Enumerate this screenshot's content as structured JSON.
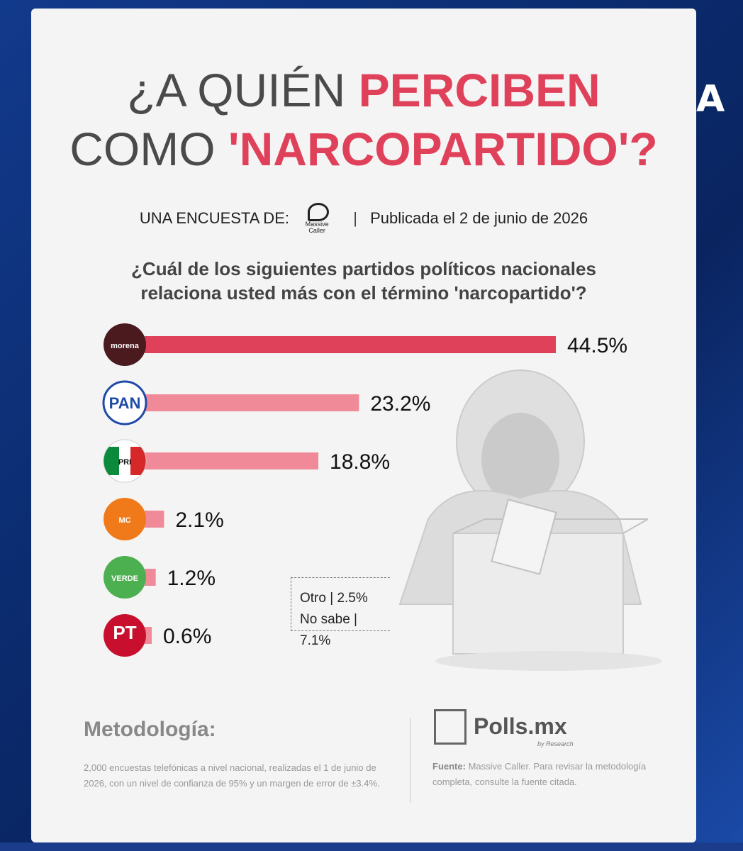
{
  "side_logo": "A",
  "title": {
    "line1_a": "¿A QUIÉN ",
    "line1_b": "PERCIBEN",
    "line2_a": "COMO ",
    "line2_b": "'NARCOPARTIDO'?"
  },
  "subline": {
    "survey_by": "UNA ENCUESTA DE:",
    "pollster_logo_text": "Massive Caller",
    "separator": "|",
    "published": "Publicada el 2 de junio de 2026"
  },
  "question": {
    "line1": "¿Cuál de los siguientes partidos políticos nacionales",
    "line2": "relaciona usted más con el término 'narcopartido'?"
  },
  "chart_data": {
    "type": "bar",
    "orientation": "horizontal",
    "categories": [
      "morena",
      "PAN",
      "PRI",
      "MC",
      "VERDE",
      "PT"
    ],
    "values": [
      44.5,
      23.2,
      18.8,
      2.1,
      1.2,
      0.6
    ],
    "value_labels": [
      "44.5%",
      "23.2%",
      "18.8%",
      "2.1%",
      "1.2%",
      "0.6%"
    ],
    "logo_texts": [
      "morena",
      "PAN",
      "PRI",
      "MC",
      "VERDE",
      "PT"
    ],
    "colors": {
      "highlight": "#e0415a",
      "other": "#f08a98",
      "morena_logo": "#4a1a1f",
      "pan_logo": "#1f4aa8",
      "pri_green": "#0a8a3a",
      "pri_red": "#d62828",
      "mc_logo": "#f07a1a",
      "verde_logo": "#4caf50",
      "pt_logo": "#c8102e"
    },
    "other_answers": [
      {
        "label": "Otro",
        "value": "2.5%"
      },
      {
        "label": "No sabe",
        "value": "7.1%"
      }
    ]
  },
  "methodology": {
    "title": "Metodología:",
    "text": "2,000 encuestas telefónicas a nivel nacional, realizadas el 1 de junio de 2026, con un nivel de confianza de 95% y un margen de error de ±3.4%."
  },
  "brand": {
    "name": "Polls.mx",
    "sub": "by Research"
  },
  "source": {
    "label": "Fuente:",
    "text": " Massive Caller. Para revisar la metodología completa, consulte la fuente citada."
  }
}
